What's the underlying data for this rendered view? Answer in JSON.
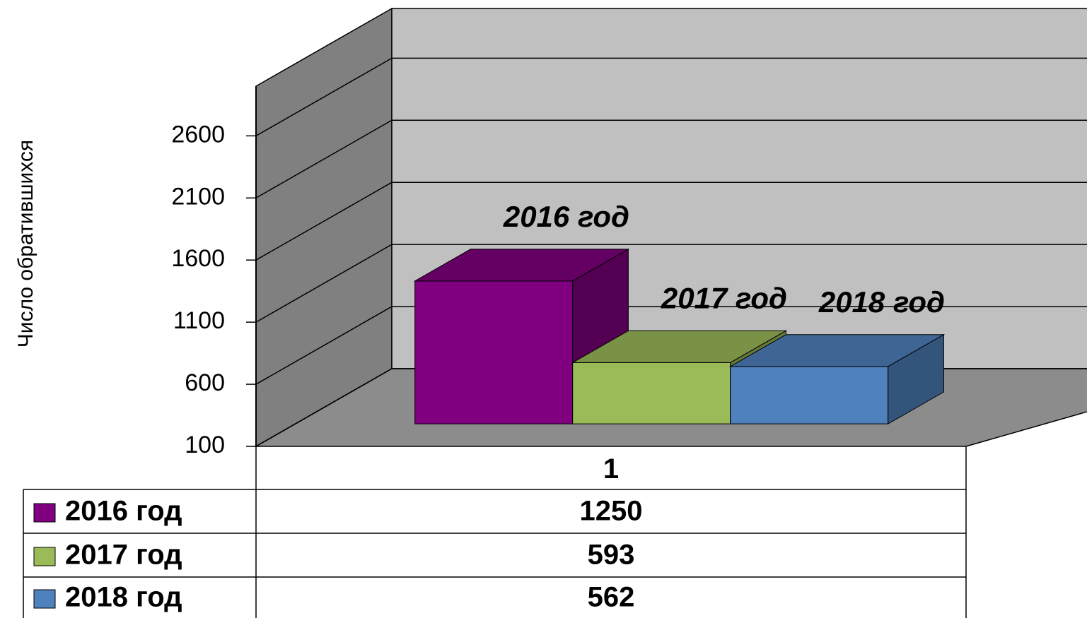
{
  "chart_data": {
    "type": "bar3d",
    "y_label": "Число обратившихся",
    "categories": [
      "1"
    ],
    "series": [
      {
        "name": "2016 год",
        "color": "#800080",
        "values": [
          1250
        ]
      },
      {
        "name": "2017 год",
        "color": "#9bbb59",
        "values": [
          593
        ]
      },
      {
        "name": "2018 год",
        "color": "#4f81bd",
        "values": [
          562
        ]
      }
    ],
    "ylim": [
      100,
      3000
    ],
    "yticks": [
      100,
      600,
      1100,
      1600,
      2100,
      2600
    ],
    "grid": true,
    "data_table": true
  }
}
